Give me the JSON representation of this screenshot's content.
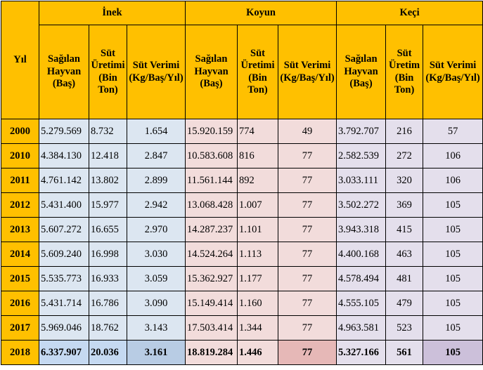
{
  "table": {
    "year_header": "Yıl",
    "groups": [
      "İnek",
      "Koyun",
      "Keçi"
    ],
    "sub_headers": {
      "animals": "Sağılan Hayvan (Baş)",
      "production": "Süt Üretimi (Bin Ton)",
      "production_keci": "Süt Üretim (Bin Ton)",
      "yield": "Süt Verimi (Kg/Baş/Yıl)"
    },
    "rows": [
      [
        "2000",
        "5.279.569",
        "8.732",
        "1.654",
        "15.920.159",
        "774",
        "49",
        "3.792.707",
        "216",
        "57"
      ],
      [
        "2010",
        "4.384.130",
        "12.418",
        "2.847",
        "10.583.608",
        "816",
        "77",
        "2.582.539",
        "272",
        "106"
      ],
      [
        "2011",
        "4.761.142",
        "13.802",
        "2.899",
        "11.561.144",
        "892",
        "77",
        "3.033.111",
        "320",
        "106"
      ],
      [
        "2012",
        "5.431.400",
        "15.977",
        "2.942",
        "13.068.428",
        "1.007",
        "77",
        "3.502.272",
        "369",
        "105"
      ],
      [
        "2013",
        "5.607.272",
        "16.655",
        "2.970",
        "14.287.237",
        "1.101",
        "77",
        "3.943.318",
        "415",
        "105"
      ],
      [
        "2014",
        "5.609.240",
        "16.998",
        "3.030",
        "14.524.264",
        "1.113",
        "77",
        "4.400.168",
        "463",
        "105"
      ],
      [
        "2015",
        "5.535.773",
        "16.933",
        "3.059",
        "15.362.927",
        "1.177",
        "77",
        "4.578.494",
        "481",
        "105"
      ],
      [
        "2016",
        "5.431.714",
        "16.786",
        "3.090",
        "15.149.414",
        "1.160",
        "77",
        "4.555.105",
        "479",
        "105"
      ],
      [
        "2017",
        "5.969.046",
        "18.762",
        "3.143",
        "17.503.414",
        "1.344",
        "77",
        "4.963.581",
        "523",
        "105"
      ],
      [
        "2018",
        "6.337.907",
        "20.036",
        "3.161",
        "18.819.284",
        "1.446",
        "77",
        "5.327.166",
        "561",
        "105"
      ]
    ]
  }
}
